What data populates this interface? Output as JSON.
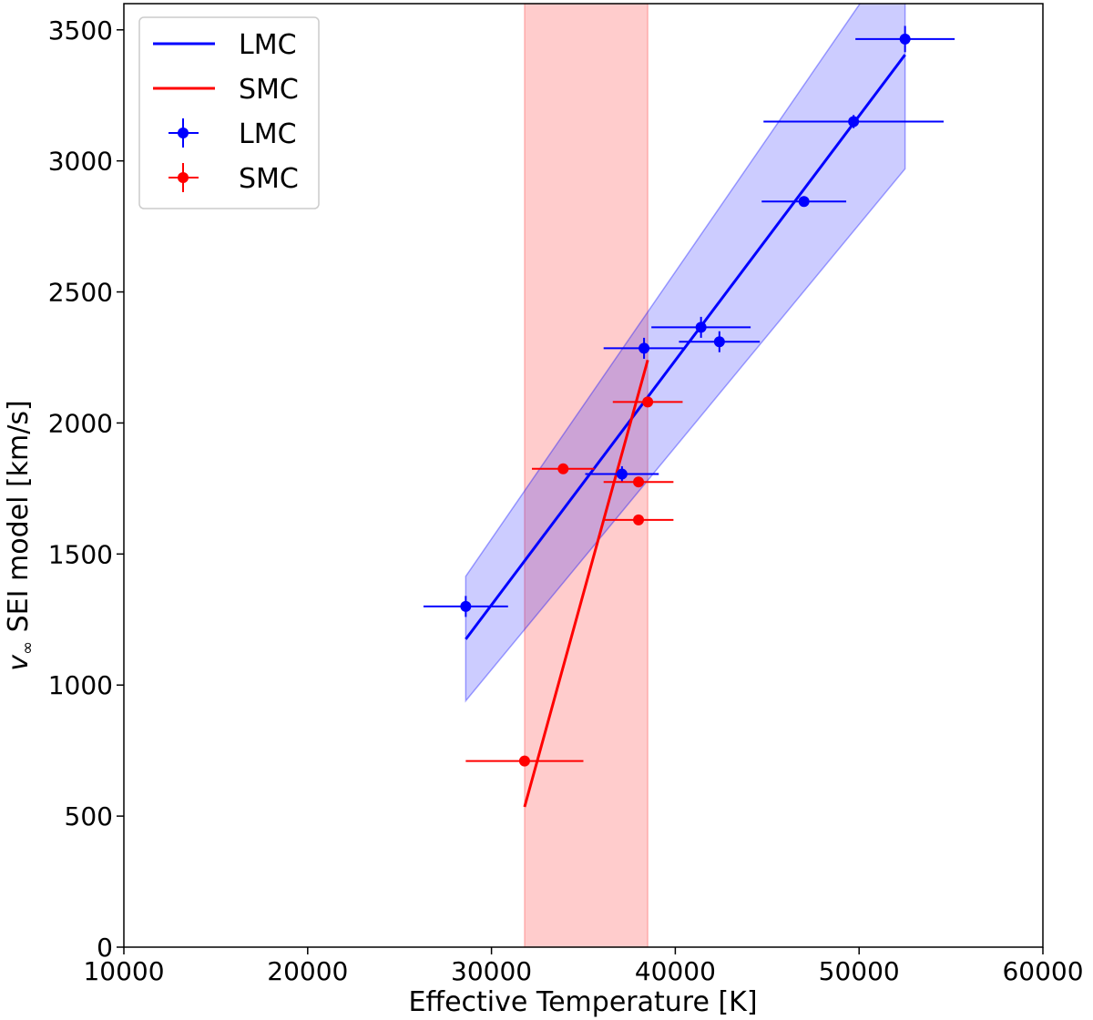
{
  "chart_data": {
    "type": "scatter",
    "title": "",
    "xlabel": "Effective Temperature [K]",
    "ylabel_var": "v",
    "ylabel_sub": "∞",
    "ylabel_rest": " SEI model [km/s]",
    "xlim": [
      10000,
      60000
    ],
    "ylim": [
      0,
      3600
    ],
    "xticks": [
      10000,
      20000,
      30000,
      40000,
      50000,
      60000
    ],
    "yticks": [
      0,
      500,
      1000,
      1500,
      2000,
      2500,
      3000,
      3500
    ],
    "grid": false,
    "legend_position": "top-left",
    "legend": [
      {
        "label": "LMC",
        "kind": "line",
        "color": "#0000ff"
      },
      {
        "label": "SMC",
        "kind": "line",
        "color": "#ff0000"
      },
      {
        "label": "LMC",
        "kind": "errorbar",
        "color": "#0000ff"
      },
      {
        "label": "SMC",
        "kind": "errorbar",
        "color": "#ff0000"
      }
    ],
    "shaded_vertical_band": {
      "x": [
        31800,
        38500
      ],
      "color": "#ff0000",
      "opacity": 0.2
    },
    "fit_lines": [
      {
        "name": "LMC",
        "color": "#0000ff",
        "x": [
          28600,
          52500
        ],
        "y": [
          1175,
          3405
        ],
        "band": {
          "x": [
            28600,
            52500
          ],
          "upper": [
            1415,
            3850
          ],
          "lower": [
            940,
            2970
          ],
          "opacity": 0.2
        }
      },
      {
        "name": "SMC",
        "color": "#ff0000",
        "x": [
          31800,
          38500
        ],
        "y": [
          535,
          2240
        ]
      }
    ],
    "series": [
      {
        "name": "LMC",
        "color": "#0000ff",
        "points": [
          {
            "x": 28600,
            "y": 1300,
            "xerr": 2300,
            "yerr": 40
          },
          {
            "x": 37100,
            "y": 1805,
            "xerr": 2000,
            "yerr": 30
          },
          {
            "x": 38300,
            "y": 2285,
            "xerr": 2200,
            "yerr": 40
          },
          {
            "x": 41400,
            "y": 2365,
            "xerr": 2700,
            "yerr": 40
          },
          {
            "x": 42400,
            "y": 2310,
            "xerr": 2200,
            "yerr": 40
          },
          {
            "x": 47000,
            "y": 2845,
            "xerr": 2300,
            "yerr": 20
          },
          {
            "x": 49700,
            "y": 3150,
            "xerr": 4900,
            "yerr": 25
          },
          {
            "x": 52500,
            "y": 3465,
            "xerr": 2700,
            "yerr": 50
          }
        ]
      },
      {
        "name": "SMC",
        "color": "#ff0000",
        "points": [
          {
            "x": 31800,
            "y": 710,
            "xerr": 3200,
            "yerr": 20
          },
          {
            "x": 33900,
            "y": 1825,
            "xerr": 1700,
            "yerr": 10
          },
          {
            "x": 38000,
            "y": 1630,
            "xerr": 1900,
            "yerr": 10
          },
          {
            "x": 38000,
            "y": 1775,
            "xerr": 1900,
            "yerr": 10
          },
          {
            "x": 38500,
            "y": 2080,
            "xerr": 1900,
            "yerr": 10
          }
        ]
      }
    ]
  }
}
